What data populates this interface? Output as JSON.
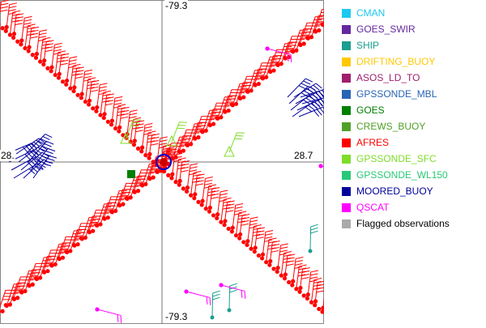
{
  "map": {
    "coordinate_labels": {
      "top": "-79.3",
      "bottom": "-79.3",
      "right": "28.7",
      "left": "28."
    },
    "observations": {
      "AFRES": {
        "color": "#ff0000",
        "tracks": 2
      },
      "GOES": {
        "color": "#008000"
      },
      "GPSSONDE_SFC": {
        "color": "#7fdc28"
      },
      "SHIP": {
        "color": "#1a9e8e"
      },
      "MOORED_BUOY": {
        "color": "#00009c"
      },
      "QSCAT": {
        "color": "#ff00ff"
      }
    }
  },
  "legend": {
    "items": [
      {
        "label": "CMAN",
        "color": "#1ec8f0"
      },
      {
        "label": "GOES_SWIR",
        "color": "#6428a0"
      },
      {
        "label": "SHIP",
        "color": "#1a9e8e"
      },
      {
        "label": "DRIFTING_BUOY",
        "color": "#ffc800"
      },
      {
        "label": "ASOS_LD_TO",
        "color": "#a01e6e"
      },
      {
        "label": "GPSSONDE_MBL",
        "color": "#2864b4"
      },
      {
        "label": "GOES",
        "color": "#008000"
      },
      {
        "label": "CREWS_BUOY",
        "color": "#50a028"
      },
      {
        "label": "AFRES",
        "color": "#ff0000"
      },
      {
        "label": "GPSSONDE_SFC",
        "color": "#7fdc28"
      },
      {
        "label": "GPSSONDE_WL150",
        "color": "#28c878"
      },
      {
        "label": "MOORED_BUOY",
        "color": "#00009c"
      },
      {
        "label": "QSCAT",
        "color": "#ff00ff"
      },
      {
        "label": "Flagged observations",
        "color": "#aaaaaa"
      }
    ]
  }
}
